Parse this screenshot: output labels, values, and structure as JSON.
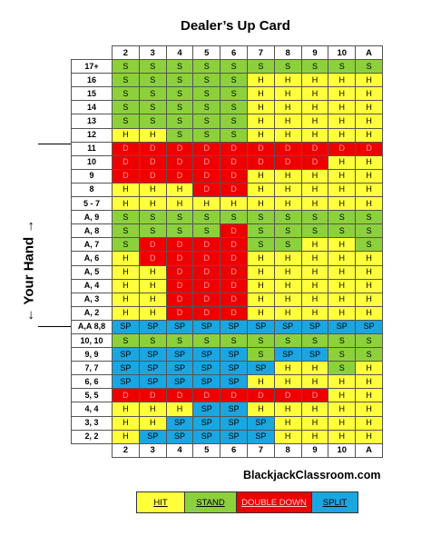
{
  "title": "Dealer’s Up Card",
  "side_label": "← Your Hand →",
  "website": "BlackjackClassroom.com",
  "dealer_cards": [
    "2",
    "3",
    "4",
    "5",
    "6",
    "7",
    "8",
    "9",
    "10",
    "A"
  ],
  "rows": [
    {
      "label": "17+",
      "cells": [
        "S",
        "S",
        "S",
        "S",
        "S",
        "S",
        "S",
        "S",
        "S",
        "S"
      ]
    },
    {
      "label": "16",
      "cells": [
        "S",
        "S",
        "S",
        "S",
        "S",
        "H",
        "H",
        "H",
        "H",
        "H"
      ]
    },
    {
      "label": "15",
      "cells": [
        "S",
        "S",
        "S",
        "S",
        "S",
        "H",
        "H",
        "H",
        "H",
        "H"
      ]
    },
    {
      "label": "14",
      "cells": [
        "S",
        "S",
        "S",
        "S",
        "S",
        "H",
        "H",
        "H",
        "H",
        "H"
      ]
    },
    {
      "label": "13",
      "cells": [
        "S",
        "S",
        "S",
        "S",
        "S",
        "H",
        "H",
        "H",
        "H",
        "H"
      ]
    },
    {
      "label": "12",
      "cells": [
        "H",
        "H",
        "S",
        "S",
        "S",
        "H",
        "H",
        "H",
        "H",
        "H"
      ]
    },
    {
      "label": "11",
      "cells": [
        "D",
        "D",
        "D",
        "D",
        "D",
        "D",
        "D",
        "D",
        "D",
        "D"
      ]
    },
    {
      "label": "10",
      "cells": [
        "D",
        "D",
        "D",
        "D",
        "D",
        "D",
        "D",
        "D",
        "H",
        "H"
      ]
    },
    {
      "label": "9",
      "cells": [
        "D",
        "D",
        "D",
        "D",
        "D",
        "H",
        "H",
        "H",
        "H",
        "H"
      ]
    },
    {
      "label": "8",
      "cells": [
        "H",
        "H",
        "H",
        "D",
        "D",
        "H",
        "H",
        "H",
        "H",
        "H"
      ]
    },
    {
      "label": "5 - 7",
      "cells": [
        "H",
        "H",
        "H",
        "H",
        "H",
        "H",
        "H",
        "H",
        "H",
        "H"
      ]
    },
    {
      "label": "A, 9",
      "cells": [
        "S",
        "S",
        "S",
        "S",
        "S",
        "S",
        "S",
        "S",
        "S",
        "S"
      ]
    },
    {
      "label": "A, 8",
      "cells": [
        "S",
        "S",
        "S",
        "S",
        "D",
        "S",
        "S",
        "S",
        "S",
        "S"
      ]
    },
    {
      "label": "A, 7",
      "cells": [
        "S",
        "D",
        "D",
        "D",
        "D",
        "S",
        "S",
        "H",
        "H",
        "S"
      ]
    },
    {
      "label": "A, 6",
      "cells": [
        "H",
        "D",
        "D",
        "D",
        "D",
        "H",
        "H",
        "H",
        "H",
        "H"
      ]
    },
    {
      "label": "A, 5",
      "cells": [
        "H",
        "H",
        "D",
        "D",
        "D",
        "H",
        "H",
        "H",
        "H",
        "H"
      ]
    },
    {
      "label": "A, 4",
      "cells": [
        "H",
        "H",
        "D",
        "D",
        "D",
        "H",
        "H",
        "H",
        "H",
        "H"
      ]
    },
    {
      "label": "A, 3",
      "cells": [
        "H",
        "H",
        "D",
        "D",
        "D",
        "H",
        "H",
        "H",
        "H",
        "H"
      ]
    },
    {
      "label": "A, 2",
      "cells": [
        "H",
        "H",
        "D",
        "D",
        "D",
        "H",
        "H",
        "H",
        "H",
        "H"
      ]
    },
    {
      "label": "A,A 8,8",
      "cells": [
        "SP",
        "SP",
        "SP",
        "SP",
        "SP",
        "SP",
        "SP",
        "SP",
        "SP",
        "SP"
      ]
    },
    {
      "label": "10, 10",
      "cells": [
        "S",
        "S",
        "S",
        "S",
        "S",
        "S",
        "S",
        "S",
        "S",
        "S"
      ]
    },
    {
      "label": "9, 9",
      "cells": [
        "SP",
        "SP",
        "SP",
        "SP",
        "SP",
        "S",
        "SP",
        "SP",
        "S",
        "S"
      ]
    },
    {
      "label": "7, 7",
      "cells": [
        "SP",
        "SP",
        "SP",
        "SP",
        "SP",
        "SP",
        "H",
        "H",
        "S",
        "H"
      ]
    },
    {
      "label": "6, 6",
      "cells": [
        "SP",
        "SP",
        "SP",
        "SP",
        "SP",
        "H",
        "H",
        "H",
        "H",
        "H"
      ]
    },
    {
      "label": "5, 5",
      "cells": [
        "D",
        "D",
        "D",
        "D",
        "D",
        "D",
        "D",
        "D",
        "H",
        "H"
      ]
    },
    {
      "label": "4, 4",
      "cells": [
        "H",
        "H",
        "H",
        "SP",
        "SP",
        "H",
        "H",
        "H",
        "H",
        "H"
      ]
    },
    {
      "label": "3, 3",
      "cells": [
        "H",
        "H",
        "SP",
        "SP",
        "SP",
        "SP",
        "H",
        "H",
        "H",
        "H"
      ]
    },
    {
      "label": "2, 2",
      "cells": [
        "H",
        "SP",
        "SP",
        "SP",
        "SP",
        "SP",
        "H",
        "H",
        "H",
        "H"
      ]
    }
  ],
  "legend": [
    {
      "code": "H",
      "label": "HIT",
      "color": "#ffff3c"
    },
    {
      "code": "S",
      "label": "STAND",
      "color": "#8cd13c"
    },
    {
      "code": "D",
      "label": "DOUBLE DOWN",
      "color": "#ee0000"
    },
    {
      "code": "SP",
      "label": "SPLIT",
      "color": "#1aa6e0"
    }
  ]
}
